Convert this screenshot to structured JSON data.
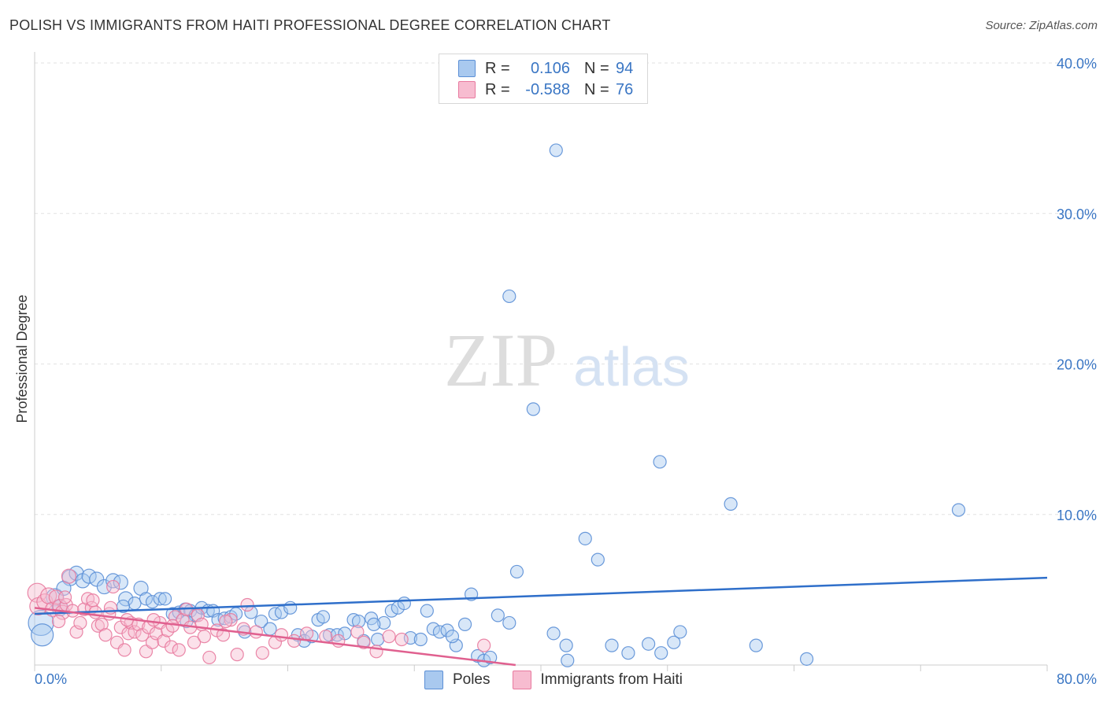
{
  "header": {
    "title": "POLISH VS IMMIGRANTS FROM HAITI PROFESSIONAL DEGREE CORRELATION CHART",
    "source": "Source: ZipAtlas.com"
  },
  "watermark": {
    "zip": "ZIP",
    "atlas": "atlas"
  },
  "legend_top": {
    "rows": [
      {
        "r_label": "R =",
        "r_value": "0.106",
        "n_label": "N =",
        "n_value": "94",
        "color": "#a9c9ef",
        "stroke": "#5b8fd6"
      },
      {
        "r_label": "R =",
        "r_value": "-0.588",
        "n_label": "N =",
        "n_value": "76",
        "color": "#f7bcd0",
        "stroke": "#e87a9f"
      }
    ]
  },
  "chart_data": {
    "type": "scatter",
    "title": "POLISH VS IMMIGRANTS FROM HAITI PROFESSIONAL DEGREE CORRELATION CHART",
    "xlabel": "",
    "ylabel": "Professional Degree",
    "xlim": [
      0,
      80
    ],
    "ylim": [
      0,
      40
    ],
    "x_tick_labels": [
      "0.0%",
      "80.0%"
    ],
    "y_ticks": [
      10,
      20,
      30,
      40
    ],
    "y_tick_labels": [
      "10.0%",
      "20.0%",
      "30.0%",
      "40.0%"
    ],
    "grid": true,
    "legend_placement": "bottom",
    "series": [
      {
        "name": "Poles",
        "color": "#a9c9ef",
        "stroke": "#5b8fd6",
        "line_color": "#2f6fca",
        "trend": {
          "x": [
            0,
            80
          ],
          "y": [
            3.4,
            5.8
          ]
        },
        "points": [
          [
            0.5,
            2.8,
            16
          ],
          [
            0.6,
            2.0,
            14
          ],
          [
            1.6,
            4.5,
            11
          ],
          [
            2.0,
            3.8,
            10
          ],
          [
            2.8,
            5.8,
            10
          ],
          [
            3.3,
            6.1,
            9
          ],
          [
            3.8,
            5.6,
            9
          ],
          [
            4.3,
            5.9,
            9
          ],
          [
            4.9,
            5.7,
            9
          ],
          [
            5.5,
            5.2,
            9
          ],
          [
            6.2,
            5.6,
            9
          ],
          [
            6.8,
            5.5,
            9
          ],
          [
            7.2,
            4.4,
            9
          ],
          [
            7.9,
            4.1,
            8
          ],
          [
            8.4,
            5.1,
            9
          ],
          [
            8.8,
            4.4,
            8
          ],
          [
            9.3,
            4.2,
            8
          ],
          [
            9.9,
            4.4,
            8
          ],
          [
            10.3,
            4.4,
            8
          ],
          [
            10.9,
            3.4,
            8
          ],
          [
            11.4,
            3.5,
            8
          ],
          [
            11.9,
            3.7,
            8
          ],
          [
            12.3,
            3.6,
            8
          ],
          [
            12.7,
            3.3,
            8
          ],
          [
            13.2,
            3.8,
            8
          ],
          [
            13.7,
            3.6,
            8
          ],
          [
            14.1,
            3.6,
            8
          ],
          [
            14.5,
            3.0,
            8
          ],
          [
            15.0,
            3.1,
            8
          ],
          [
            15.5,
            3.2,
            8
          ],
          [
            15.9,
            3.4,
            8
          ],
          [
            16.6,
            2.2,
            8
          ],
          [
            17.1,
            3.5,
            8
          ],
          [
            17.9,
            2.9,
            8
          ],
          [
            18.6,
            2.4,
            8
          ],
          [
            19.0,
            3.4,
            8
          ],
          [
            19.5,
            3.5,
            8
          ],
          [
            20.2,
            3.8,
            8
          ],
          [
            20.8,
            2.0,
            8
          ],
          [
            21.3,
            1.6,
            8
          ],
          [
            21.9,
            1.9,
            8
          ],
          [
            22.4,
            3.0,
            8
          ],
          [
            22.8,
            3.2,
            8
          ],
          [
            23.3,
            2.0,
            8
          ],
          [
            23.9,
            2.0,
            8
          ],
          [
            24.5,
            2.1,
            8
          ],
          [
            25.2,
            3.0,
            8
          ],
          [
            25.6,
            2.9,
            8
          ],
          [
            26.0,
            1.6,
            8
          ],
          [
            26.6,
            3.1,
            8
          ],
          [
            27.1,
            1.7,
            8
          ],
          [
            27.6,
            2.8,
            8
          ],
          [
            28.2,
            3.6,
            8
          ],
          [
            28.7,
            3.8,
            8
          ],
          [
            29.2,
            4.1,
            8
          ],
          [
            29.7,
            1.8,
            8
          ],
          [
            30.5,
            1.7,
            8
          ],
          [
            31.0,
            3.6,
            8
          ],
          [
            31.5,
            2.4,
            8
          ],
          [
            32.0,
            2.2,
            8
          ],
          [
            32.6,
            2.3,
            8
          ],
          [
            33.3,
            1.3,
            8
          ],
          [
            34.0,
            2.7,
            8
          ],
          [
            34.5,
            4.7,
            8
          ],
          [
            35.0,
            0.6,
            8
          ],
          [
            35.5,
            0.3,
            8
          ],
          [
            36.0,
            0.5,
            8
          ],
          [
            36.6,
            3.3,
            8
          ],
          [
            37.5,
            2.8,
            8
          ],
          [
            38.1,
            6.2,
            8
          ],
          [
            37.5,
            24.5,
            8
          ],
          [
            39.4,
            17.0,
            8
          ],
          [
            41.2,
            34.2,
            8
          ],
          [
            41.0,
            2.1,
            8
          ],
          [
            42.0,
            1.3,
            8
          ],
          [
            42.1,
            0.3,
            8
          ],
          [
            43.5,
            8.4,
            8
          ],
          [
            44.5,
            7.0,
            8
          ],
          [
            45.6,
            1.3,
            8
          ],
          [
            46.9,
            0.8,
            8
          ],
          [
            48.5,
            1.4,
            8
          ],
          [
            49.5,
            0.8,
            8
          ],
          [
            50.5,
            1.5,
            8
          ],
          [
            51.0,
            2.2,
            8
          ],
          [
            49.4,
            13.5,
            8
          ],
          [
            55.0,
            10.7,
            8
          ],
          [
            57.0,
            1.3,
            8
          ],
          [
            61.0,
            0.4,
            8
          ],
          [
            73.0,
            10.3,
            8
          ],
          [
            2.3,
            5.1,
            9
          ],
          [
            7.0,
            3.9,
            8
          ],
          [
            12.0,
            2.9,
            8
          ],
          [
            26.8,
            2.7,
            8
          ],
          [
            33.0,
            1.9,
            8
          ]
        ]
      },
      {
        "name": "Immigrants from Haiti",
        "color": "#f7bcd0",
        "stroke": "#e87a9f",
        "line_color": "#e0608f",
        "trend": {
          "x": [
            0,
            38
          ],
          "y": [
            3.8,
            0.0
          ]
        },
        "points": [
          [
            0.2,
            4.8,
            12
          ],
          [
            0.3,
            3.9,
            11
          ],
          [
            0.8,
            4.2,
            10
          ],
          [
            1.1,
            4.6,
            10
          ],
          [
            1.4,
            3.7,
            9
          ],
          [
            1.7,
            4.5,
            9
          ],
          [
            2.0,
            3.9,
            9
          ],
          [
            2.2,
            3.5,
            9
          ],
          [
            2.5,
            4.0,
            8
          ],
          [
            2.7,
            5.9,
            9
          ],
          [
            3.0,
            3.6,
            8
          ],
          [
            3.3,
            2.2,
            8
          ],
          [
            3.6,
            2.8,
            8
          ],
          [
            3.9,
            3.7,
            8
          ],
          [
            4.2,
            4.4,
            8
          ],
          [
            4.5,
            3.8,
            8
          ],
          [
            4.8,
            3.5,
            8
          ],
          [
            5.0,
            2.6,
            8
          ],
          [
            5.3,
            2.7,
            8
          ],
          [
            5.6,
            2.0,
            8
          ],
          [
            5.9,
            3.4,
            8
          ],
          [
            6.2,
            5.2,
            8
          ],
          [
            6.5,
            1.5,
            8
          ],
          [
            6.8,
            2.5,
            8
          ],
          [
            7.1,
            1.0,
            8
          ],
          [
            7.4,
            2.1,
            8
          ],
          [
            7.6,
            2.8,
            8
          ],
          [
            7.9,
            2.2,
            8
          ],
          [
            8.2,
            2.7,
            8
          ],
          [
            8.5,
            2.0,
            8
          ],
          [
            8.8,
            0.9,
            8
          ],
          [
            9.0,
            2.5,
            8
          ],
          [
            9.3,
            1.5,
            8
          ],
          [
            9.6,
            2.1,
            8
          ],
          [
            9.9,
            2.8,
            8
          ],
          [
            10.2,
            1.6,
            8
          ],
          [
            10.5,
            2.3,
            8
          ],
          [
            10.8,
            1.2,
            8
          ],
          [
            11.1,
            3.2,
            8
          ],
          [
            11.4,
            1.0,
            8
          ],
          [
            11.7,
            3.0,
            8
          ],
          [
            12.0,
            3.7,
            8
          ],
          [
            12.3,
            2.5,
            8
          ],
          [
            12.6,
            1.5,
            8
          ],
          [
            12.9,
            3.3,
            8
          ],
          [
            13.2,
            2.7,
            8
          ],
          [
            13.8,
            0.5,
            8
          ],
          [
            14.4,
            2.3,
            8
          ],
          [
            14.9,
            2.0,
            8
          ],
          [
            15.5,
            3.0,
            8
          ],
          [
            16.0,
            0.7,
            8
          ],
          [
            16.5,
            2.4,
            8
          ],
          [
            16.8,
            4.0,
            8
          ],
          [
            17.5,
            2.2,
            8
          ],
          [
            18.0,
            0.8,
            8
          ],
          [
            19.0,
            1.5,
            8
          ],
          [
            19.5,
            2.0,
            8
          ],
          [
            20.5,
            1.6,
            8
          ],
          [
            21.5,
            2.1,
            8
          ],
          [
            23.0,
            1.9,
            8
          ],
          [
            24.0,
            1.6,
            8
          ],
          [
            25.5,
            2.2,
            8
          ],
          [
            26.0,
            1.5,
            8
          ],
          [
            27.0,
            0.9,
            8
          ],
          [
            28.0,
            1.9,
            8
          ],
          [
            29.0,
            1.7,
            8
          ],
          [
            35.5,
            1.3,
            8
          ],
          [
            1.9,
            2.9,
            8
          ],
          [
            2.4,
            4.5,
            8
          ],
          [
            4.6,
            4.3,
            8
          ],
          [
            6.0,
            3.8,
            8
          ],
          [
            7.3,
            3.0,
            8
          ],
          [
            9.4,
            3.0,
            8
          ],
          [
            10.9,
            2.6,
            8
          ],
          [
            13.4,
            1.9,
            8
          ],
          [
            15.1,
            2.9,
            8
          ]
        ]
      }
    ]
  }
}
